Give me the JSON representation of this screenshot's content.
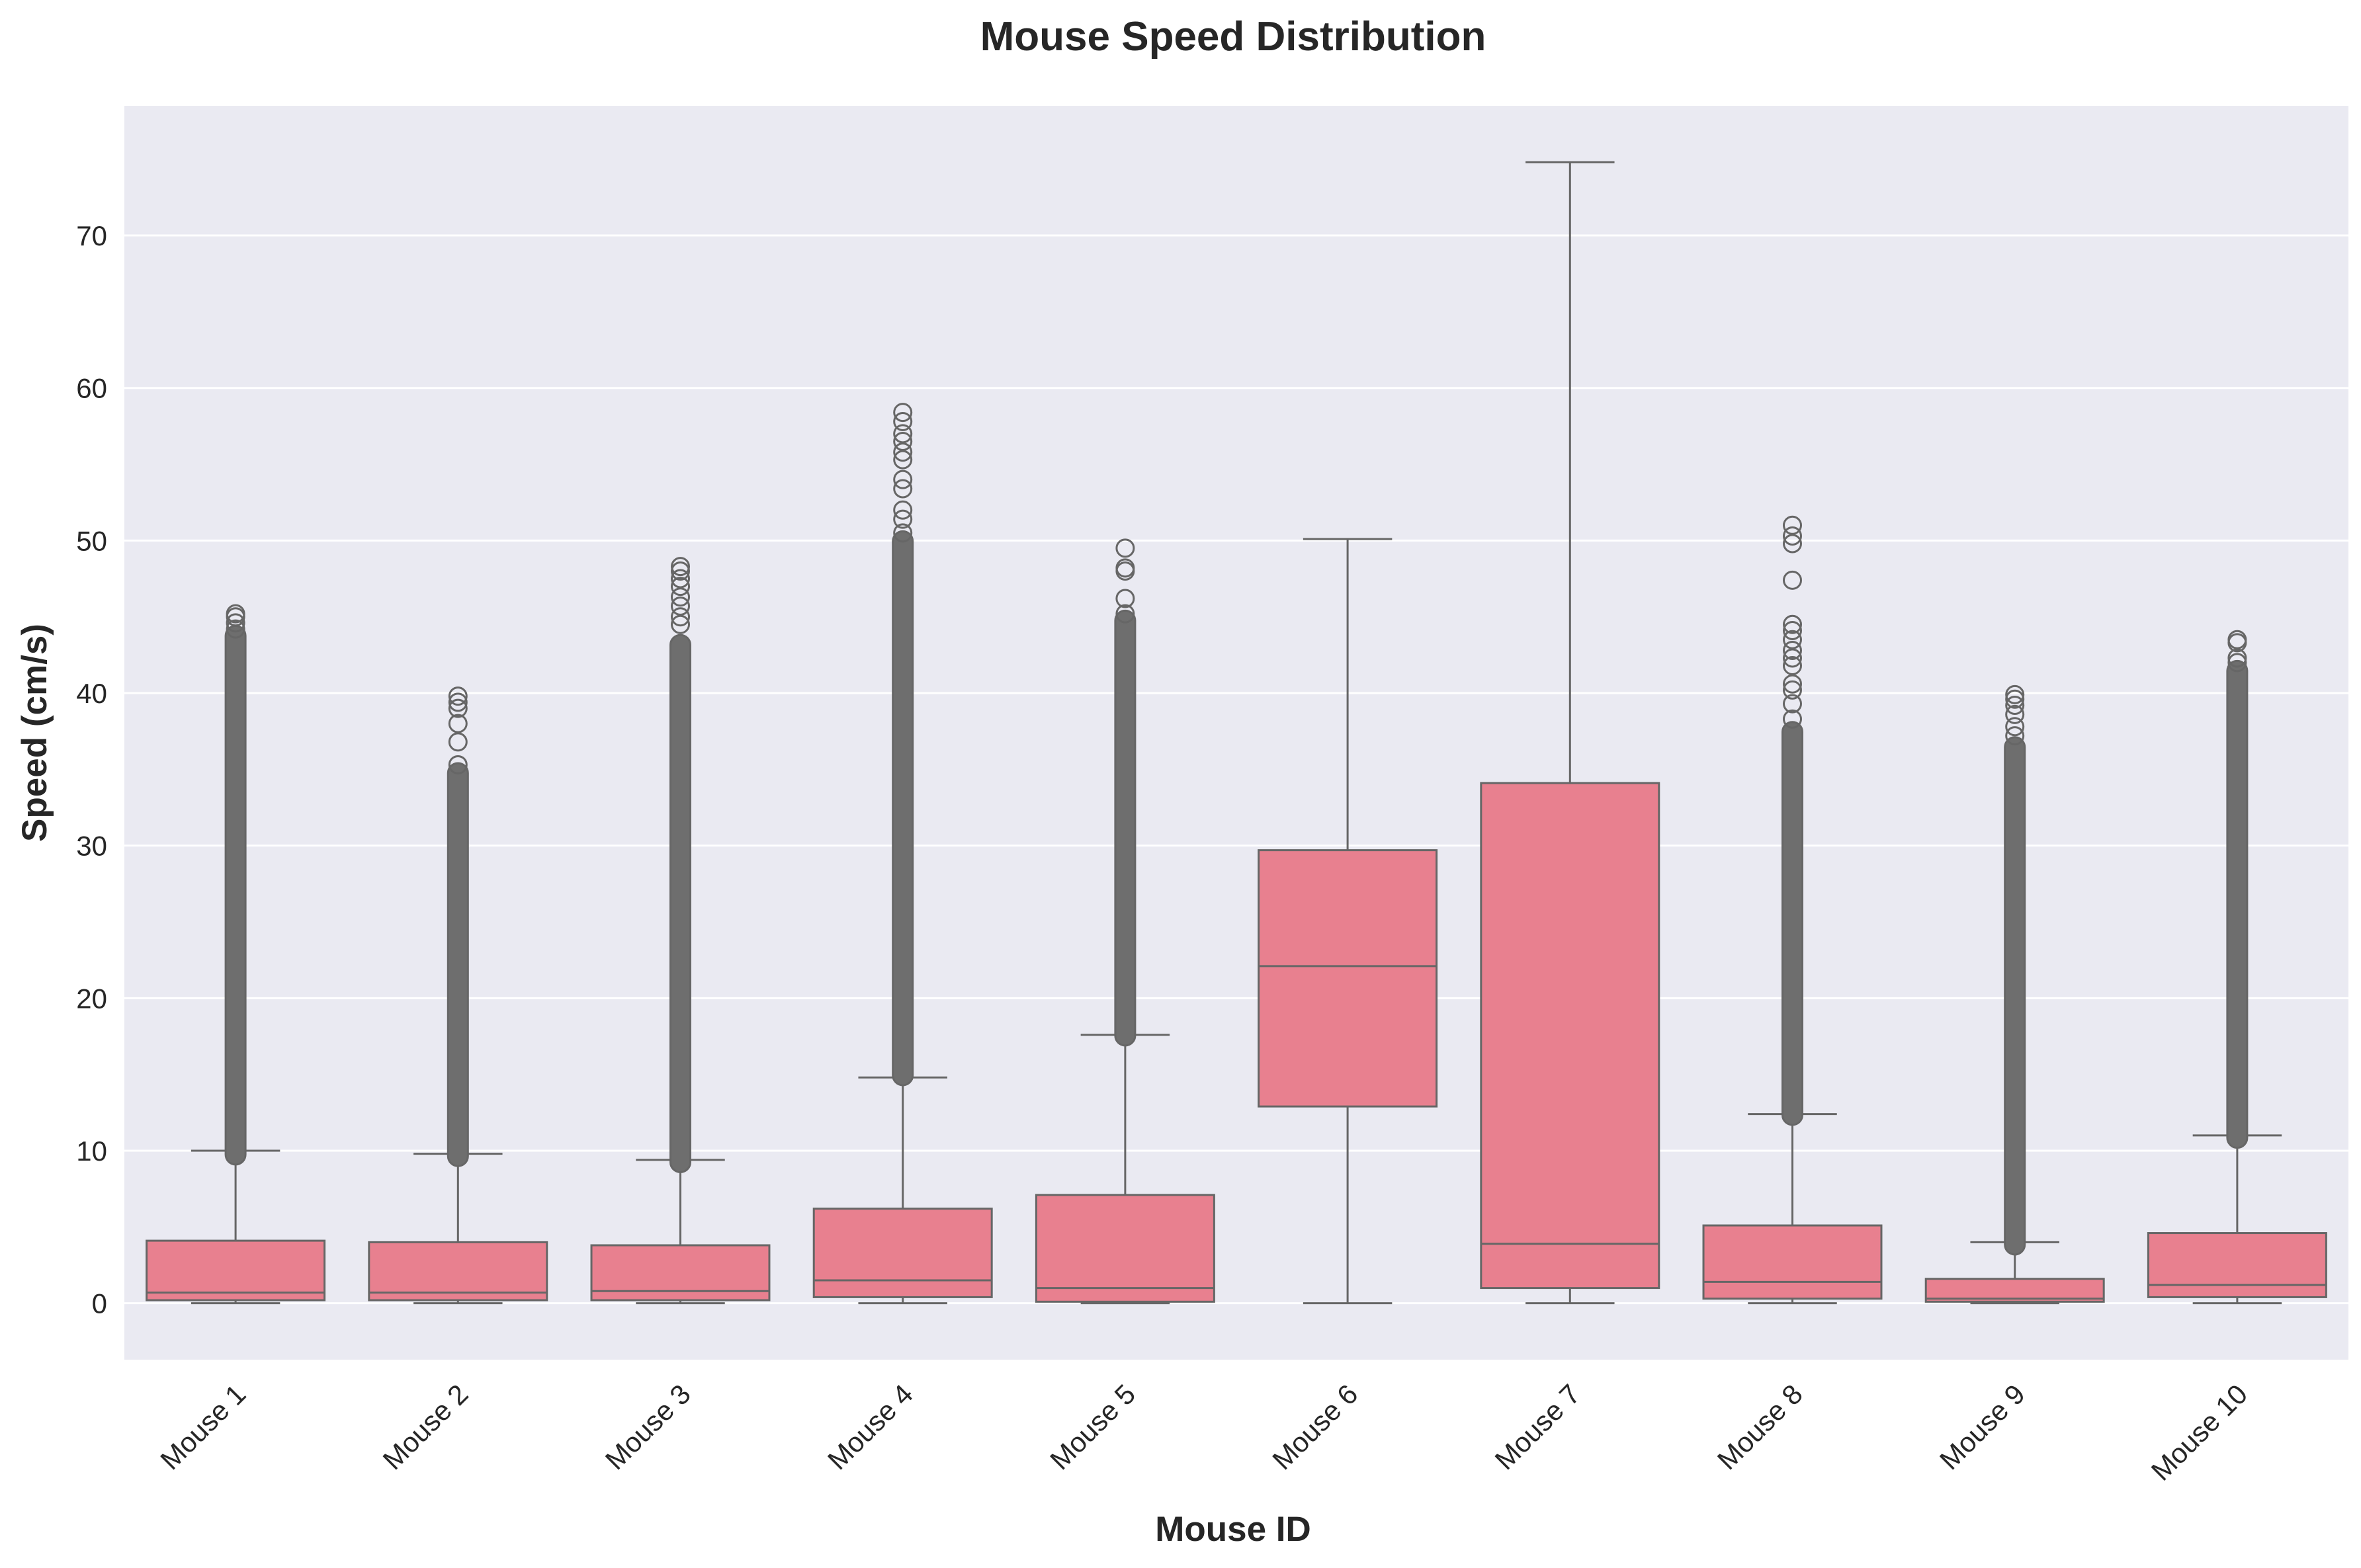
{
  "chart_data": {
    "type": "box",
    "title": "Mouse Speed Distribution",
    "xlabel": "Mouse ID",
    "ylabel": "Speed (cm/s)",
    "ylim": [
      -3.7,
      78.5
    ],
    "yticks": [
      0,
      10,
      20,
      30,
      40,
      50,
      60,
      70
    ],
    "grid": true,
    "colors": {
      "box": "#e8808f",
      "line": "#666666",
      "background": "#eaeaf2",
      "grid": "#ffffff"
    },
    "categories": [
      "Mouse 1",
      "Mouse 2",
      "Mouse 3",
      "Mouse 4",
      "Mouse 5",
      "Mouse 6",
      "Mouse 7",
      "Mouse 8",
      "Mouse 9",
      "Mouse 10"
    ],
    "boxes": [
      {
        "whislo": 0.0,
        "q1": 0.2,
        "med": 0.7,
        "q3": 4.1,
        "whishi": 10.0,
        "fliers": {
          "dense_from": 9.7,
          "dense_to": 43.8,
          "points": [
            44.2,
            44.6,
            45.0,
            45.2
          ]
        }
      },
      {
        "whislo": 0.0,
        "q1": 0.2,
        "med": 0.7,
        "q3": 4.0,
        "whishi": 9.8,
        "fliers": {
          "dense_from": 9.6,
          "dense_to": 34.8,
          "points": [
            35.3,
            36.8,
            38.0,
            39.0,
            39.4,
            39.8
          ]
        }
      },
      {
        "whislo": 0.0,
        "q1": 0.2,
        "med": 0.8,
        "q3": 3.8,
        "whishi": 9.4,
        "fliers": {
          "dense_from": 9.2,
          "dense_to": 43.2,
          "points": [
            44.5,
            45.0,
            45.7,
            46.3,
            47.0,
            47.5,
            48.0,
            48.3
          ]
        }
      },
      {
        "whislo": 0.0,
        "q1": 0.4,
        "med": 1.5,
        "q3": 6.2,
        "whishi": 14.8,
        "fliers": {
          "dense_from": 14.9,
          "dense_to": 50.0,
          "points": [
            50.5,
            51.4,
            52.0,
            53.4,
            54.0,
            55.3,
            55.8,
            56.5,
            57.0,
            57.8,
            58.4
          ]
        }
      },
      {
        "whislo": 0.0,
        "q1": 0.1,
        "med": 1.0,
        "q3": 7.1,
        "whishi": 17.6,
        "fliers": {
          "dense_from": 17.5,
          "dense_to": 44.8,
          "points": [
            45.2,
            46.2,
            48.0,
            48.2,
            49.5
          ]
        }
      },
      {
        "whislo": 0.0,
        "q1": 12.9,
        "med": 22.1,
        "q3": 29.7,
        "whishi": 50.1,
        "fliers": {
          "dense_from": null,
          "dense_to": null,
          "points": []
        }
      },
      {
        "whislo": 0.0,
        "q1": 1.0,
        "med": 3.9,
        "q3": 34.1,
        "whishi": 74.8,
        "fliers": {
          "dense_from": null,
          "dense_to": null,
          "points": []
        }
      },
      {
        "whislo": 0.0,
        "q1": 0.3,
        "med": 1.4,
        "q3": 5.1,
        "whishi": 12.4,
        "fliers": {
          "dense_from": 12.3,
          "dense_to": 37.5,
          "points": [
            38.3,
            39.3,
            40.2,
            40.6,
            41.8,
            42.3,
            42.8,
            43.5,
            44.1,
            44.5,
            47.4,
            49.8,
            50.3,
            51.0
          ]
        }
      },
      {
        "whislo": 0.0,
        "q1": 0.1,
        "med": 0.3,
        "q3": 1.6,
        "whishi": 4.0,
        "fliers": {
          "dense_from": 3.8,
          "dense_to": 36.5,
          "points": [
            37.2,
            37.8,
            38.6,
            39.2,
            39.6,
            39.9
          ]
        }
      },
      {
        "whislo": 0.0,
        "q1": 0.4,
        "med": 1.2,
        "q3": 4.6,
        "whishi": 11.0,
        "fliers": {
          "dense_from": 10.8,
          "dense_to": 41.5,
          "points": [
            42.0,
            42.3,
            43.3,
            43.5
          ]
        }
      }
    ]
  }
}
